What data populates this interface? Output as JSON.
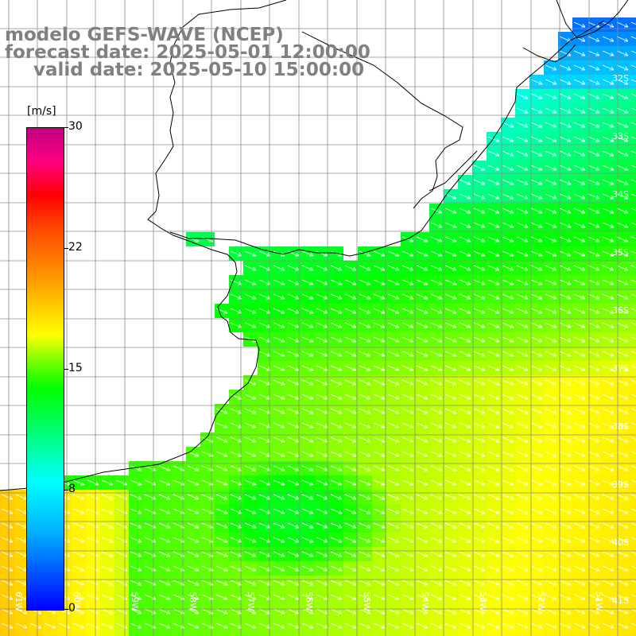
{
  "header": {
    "line1": "modelo GEFS-WAVE (NCEP)",
    "line2": "forecast date: 2025-05-01 12:00:00",
    "line3": "valid date: 2025-05-10 15:00:00"
  },
  "colorbar": {
    "unit": "[m/s]",
    "ticks": [
      "30",
      "22",
      "15",
      "8",
      "0"
    ],
    "tick_values": [
      30,
      22,
      15,
      8,
      0
    ],
    "min": 0,
    "max": 30
  },
  "map": {
    "lat_labels": [
      "32S",
      "33S",
      "34S",
      "35S",
      "36S",
      "37S",
      "38S",
      "39S",
      "40S",
      "41S"
    ],
    "lon_labels": [
      "61W",
      "60W",
      "59W",
      "58W",
      "57W",
      "56W",
      "55W",
      "54W",
      "53W",
      "52W",
      "51W"
    ],
    "arrow_direction": "toward southeast",
    "colors": {
      "land": "#ffffff",
      "coast": "#000000",
      "grid": "#808080",
      "title_text": "#808080",
      "arrows": "#ffffff"
    }
  }
}
